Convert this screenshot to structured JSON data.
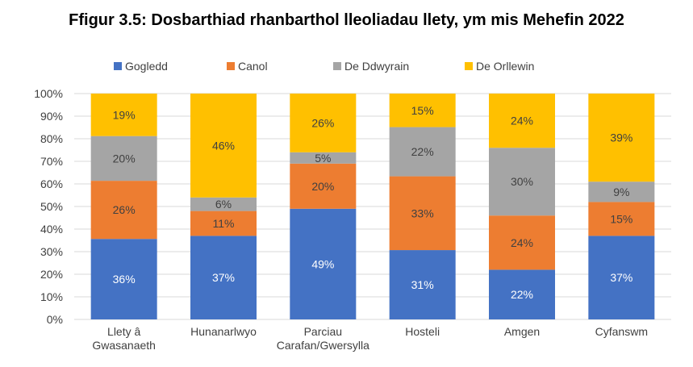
{
  "chart_data": {
    "type": "bar",
    "stacked": true,
    "title": "Ffigur 3.5: Dosbarthiad rhanbarthol lleoliadau llety, ym mis Mehefin 2022",
    "categories": [
      [
        "Llety â",
        "Gwasanaeth"
      ],
      [
        "Hunanarlwyo"
      ],
      [
        "Parciau",
        "Carafan/Gwersylla"
      ],
      [
        "Hosteli"
      ],
      [
        "Amgen"
      ],
      [
        "Cyfanswm"
      ]
    ],
    "series": [
      {
        "name": "Gogledd",
        "color": "#4472C4",
        "label_color": "#ffffff",
        "values": [
          36,
          37,
          49,
          31,
          22,
          37
        ]
      },
      {
        "name": "Canol",
        "color": "#ED7D31",
        "label_color": "#404040",
        "values": [
          26,
          11,
          20,
          33,
          24,
          15
        ]
      },
      {
        "name": "De Ddwyrain",
        "color": "#A5A5A5",
        "label_color": "#404040",
        "values": [
          20,
          6,
          5,
          22,
          30,
          9
        ]
      },
      {
        "name": "De Orllewin",
        "color": "#FFC000",
        "label_color": "#404040",
        "values": [
          19,
          46,
          26,
          15,
          24,
          39
        ]
      }
    ],
    "yticks": [
      "0%",
      "10%",
      "20%",
      "30%",
      "40%",
      "50%",
      "60%",
      "70%",
      "80%",
      "90%",
      "100%"
    ],
    "ylim": [
      0,
      100
    ],
    "grid": true,
    "legend_position": "top"
  }
}
